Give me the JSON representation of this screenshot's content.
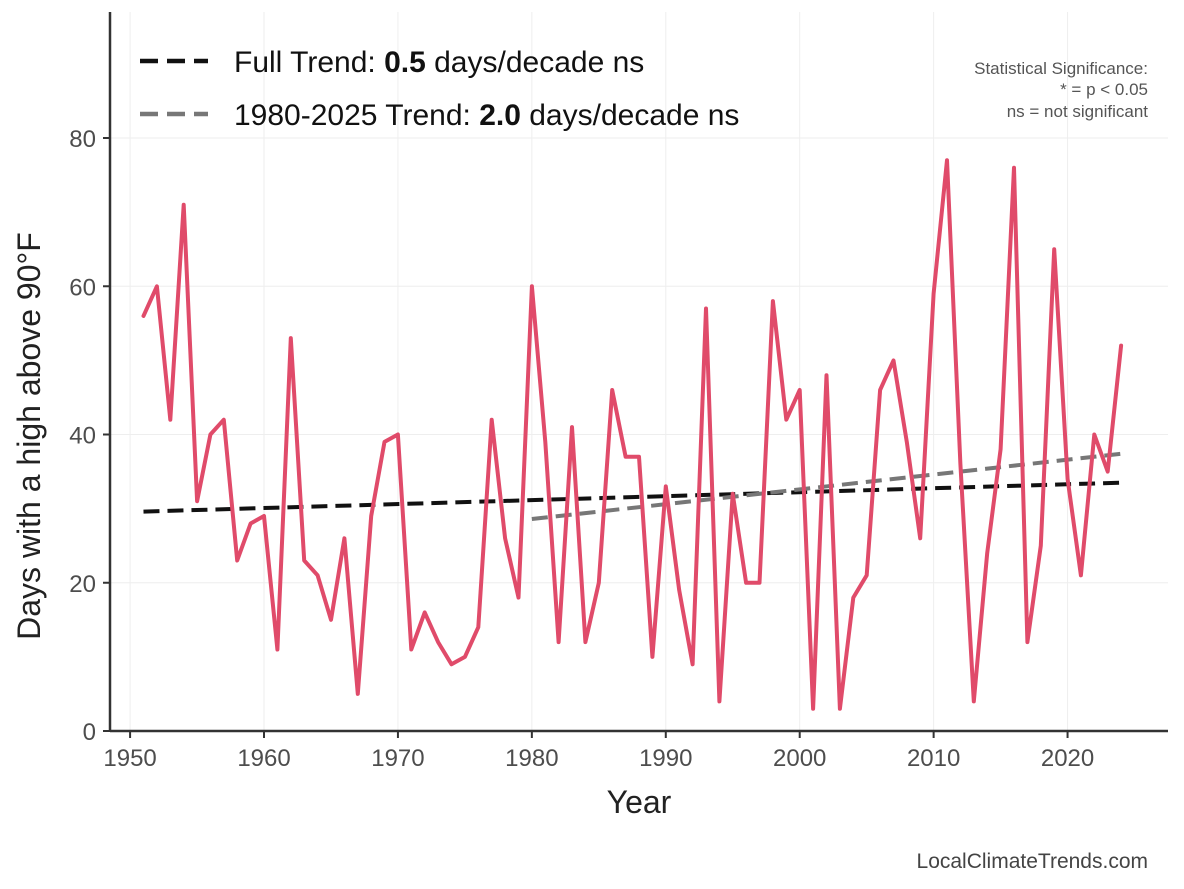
{
  "chart_data": {
    "type": "line",
    "xlabel": "Year",
    "ylabel": "Days with a high above 90°F",
    "xlim": [
      1948.5,
      2027.5
    ],
    "ylim": [
      0,
      97
    ],
    "x_ticks": [
      1950,
      1960,
      1970,
      1980,
      1990,
      2000,
      2010,
      2020
    ],
    "y_ticks": [
      0,
      20,
      40,
      60,
      80
    ],
    "grid": true,
    "series": [
      {
        "color": "#e04b6a",
        "x": [
          1951,
          1952,
          1953,
          1954,
          1955,
          1956,
          1957,
          1958,
          1959,
          1960,
          1961,
          1962,
          1963,
          1964,
          1965,
          1966,
          1967,
          1968,
          1969,
          1970,
          1971,
          1972,
          1973,
          1974,
          1975,
          1976,
          1977,
          1978,
          1979,
          1980,
          1981,
          1982,
          1983,
          1984,
          1985,
          1986,
          1987,
          1988,
          1989,
          1990,
          1991,
          1992,
          1993,
          1994,
          1995,
          1996,
          1997,
          1998,
          1999,
          2000,
          2001,
          2002,
          2003,
          2004,
          2005,
          2006,
          2007,
          2008,
          2009,
          2010,
          2011,
          2012,
          2013,
          2014,
          2015,
          2016,
          2017,
          2018,
          2019,
          2020,
          2021,
          2022,
          2023,
          2024
        ],
        "values": [
          56,
          60,
          42,
          71,
          31,
          40,
          42,
          23,
          28,
          29,
          11,
          53,
          23,
          21,
          15,
          26,
          5,
          29,
          39,
          40,
          11,
          16,
          12,
          9,
          10,
          14,
          42,
          26,
          18,
          60,
          39,
          12,
          41,
          12,
          20,
          46,
          37,
          37,
          10,
          33,
          19,
          9,
          57,
          4,
          32,
          20,
          20,
          58,
          42,
          46,
          3,
          48,
          3,
          18,
          21,
          46,
          50,
          39,
          26,
          59,
          77,
          36,
          4,
          24,
          38,
          76,
          12,
          25,
          65,
          34,
          21,
          40,
          35,
          52
        ]
      }
    ],
    "trend_lines": [
      {
        "name": "Full Trend",
        "value": "0.5",
        "unit": "days/decade",
        "significance": "ns",
        "color": "#111111",
        "x": [
          1951,
          2024
        ],
        "y": [
          29.6,
          33.5
        ]
      },
      {
        "name": "1980-2025 Trend",
        "value": "2.0",
        "unit": "days/decade",
        "significance": "ns",
        "color": "#777777",
        "x": [
          1980,
          2024
        ],
        "y": [
          28.6,
          37.4
        ]
      }
    ],
    "legend_position": "top-left",
    "significance_note": {
      "title": "Statistical Significance:",
      "line1": "* = p < 0.05",
      "line2": "ns = not significant"
    },
    "source": "LocalClimateTrends.com"
  }
}
